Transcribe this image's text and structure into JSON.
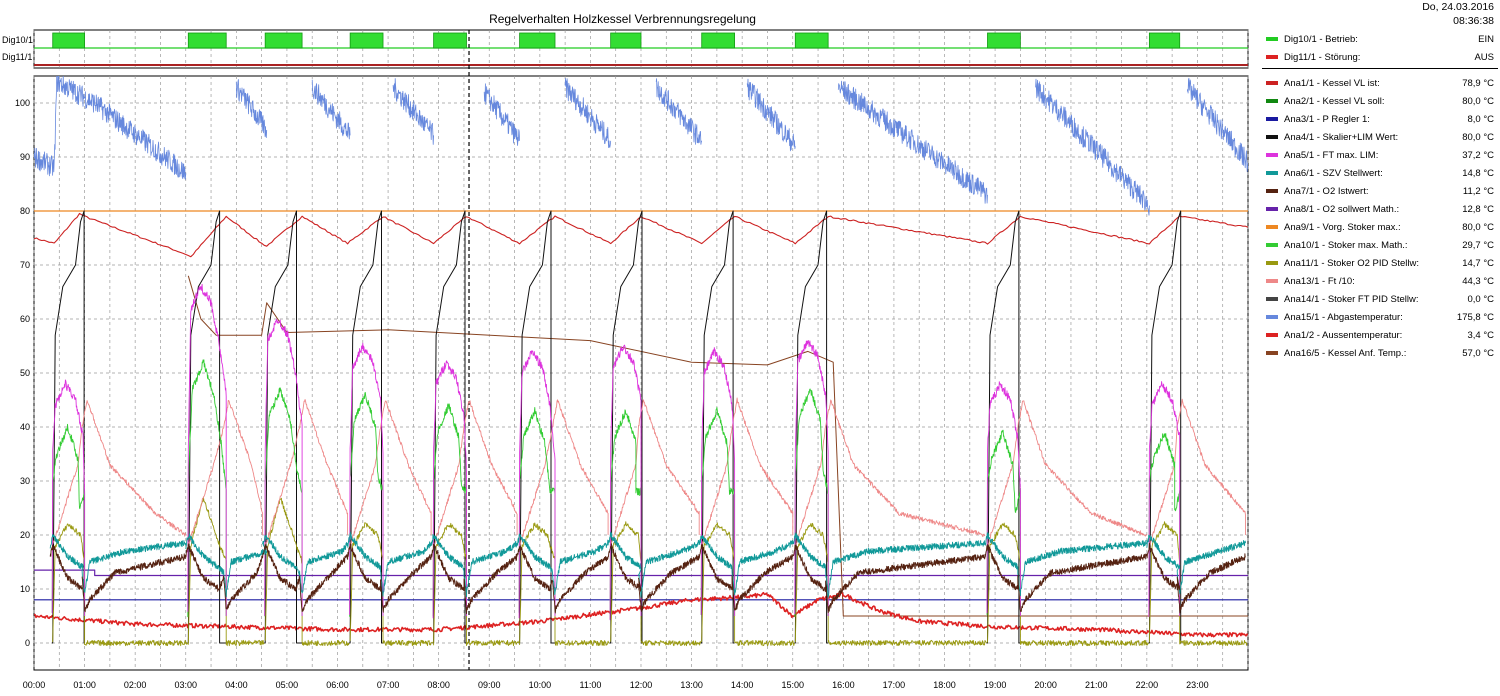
{
  "header": {
    "title": "Regelverhalten Holzkessel Verbrennungsregelung",
    "date": "Do, 24.03.2016",
    "time": "08:36:38"
  },
  "legend": {
    "digital": [
      {
        "label": "Dig10/1 - Betrieb:",
        "value": "EIN",
        "color": "#22cc22"
      },
      {
        "label": "Dig11/1 - Störung:",
        "value": "AUS",
        "color": "#dd2222"
      }
    ],
    "analog": [
      {
        "label": "Ana1/1 - Kessel VL ist:",
        "value": "78,9 °C",
        "color": "#cc2222"
      },
      {
        "label": "Ana2/1 - Kessel VL soll:",
        "value": "80,0 °C",
        "color": "#118811"
      },
      {
        "label": "Ana3/1 - P Regler 1:",
        "value": "8,0 °C",
        "color": "#1a1aa0"
      },
      {
        "label": "Ana4/1 - Skalier+LIM Wert:",
        "value": "80,0 °C",
        "color": "#111111"
      },
      {
        "label": "Ana5/1 - FT max. LIM:",
        "value": "37,2 °C",
        "color": "#dd33dd"
      },
      {
        "label": "Ana6/1 - SZV Stellwert:",
        "value": "14,8 °C",
        "color": "#119999"
      },
      {
        "label": "Ana7/1 - O2 Istwert:",
        "value": "11,2 °C",
        "color": "#552211"
      },
      {
        "label": "Ana8/1 - O2 sollwert Math.:",
        "value": "12,8 °C",
        "color": "#6622aa"
      },
      {
        "label": "Ana9/1 - Vorg. Stoker max.:",
        "value": "80,0 °C",
        "color": "#ee8822"
      },
      {
        "label": "Ana10/1 - Stoker max. Math.:",
        "value": "29,7 °C",
        "color": "#33cc33"
      },
      {
        "label": "Ana11/1 - Stoker O2 PID Stellw:",
        "value": "14,7 °C",
        "color": "#999911"
      },
      {
        "label": "Ana13/1 - Ft /10:",
        "value": "44,3 °C",
        "color": "#ee8888"
      },
      {
        "label": "Ana14/1 - Stoker FT PID Stellw:",
        "value": "0,0 °C",
        "color": "#444444"
      },
      {
        "label": "Ana15/1 - Abgastemperatur:",
        "value": "175,8 °C",
        "color": "#6688dd"
      },
      {
        "label": "Ana1/2 - Aussentemperatur:",
        "value": "3,4 °C",
        "color": "#dd2222"
      },
      {
        "label": "Ana16/5 - Kessel Anf. Temp.:",
        "value": "57,0 °C",
        "color": "#884422"
      }
    ]
  },
  "chart_data": {
    "type": "line",
    "title": "Regelverhalten Holzkessel Verbrennungsregelung",
    "digital_tracks": [
      {
        "name": "Dig10/1",
        "on_intervals_hours": [
          [
            0.37,
            1.0
          ],
          [
            3.05,
            3.8
          ],
          [
            4.57,
            5.3
          ],
          [
            6.25,
            6.9
          ],
          [
            7.9,
            8.55
          ],
          [
            9.6,
            10.3
          ],
          [
            11.4,
            12.0
          ],
          [
            13.2,
            13.85
          ],
          [
            15.05,
            15.7
          ],
          [
            18.85,
            19.5
          ],
          [
            22.05,
            22.65
          ]
        ]
      },
      {
        "name": "Dig11/1",
        "on_intervals_hours": []
      }
    ],
    "x_ticks": [
      "00:00",
      "01:00",
      "02:00",
      "03:00",
      "04:00",
      "05:00",
      "06:00",
      "07:00",
      "08:00",
      "09:00",
      "10:00",
      "11:00",
      "12:00",
      "13:00",
      "14:00",
      "15:00",
      "16:00",
      "17:00",
      "18:00",
      "19:00",
      "20:00",
      "21:00",
      "22:00",
      "23:00"
    ],
    "y_ticks": [
      0,
      10,
      20,
      30,
      40,
      50,
      60,
      70,
      80,
      90,
      100
    ],
    "xlim_hours": [
      0,
      24
    ],
    "ylim": [
      -5,
      105
    ],
    "grid": true,
    "cursor_hour": 8.6,
    "burn_cycles_start_hours": [
      0.37,
      3.05,
      4.57,
      6.25,
      7.9,
      9.6,
      11.4,
      13.2,
      15.05,
      18.85,
      22.05
    ],
    "burn_cycles_end_hours": [
      1.0,
      3.8,
      5.3,
      6.9,
      8.55,
      10.3,
      12.0,
      13.85,
      15.7,
      19.5,
      22.65
    ],
    "series": [
      {
        "name": "Ana1/1",
        "kind": "boiler",
        "points": [
          [
            0,
            75
          ],
          [
            0.4,
            74
          ],
          [
            0.9,
            79.5
          ],
          [
            1.0,
            79
          ],
          [
            3.0,
            72
          ],
          [
            3.1,
            71.5
          ],
          [
            3.8,
            79
          ],
          [
            4.5,
            74
          ],
          [
            4.6,
            73.5
          ],
          [
            5.3,
            79
          ],
          [
            6.2,
            74
          ],
          [
            6.9,
            79
          ],
          [
            7.9,
            74
          ],
          [
            8.55,
            79
          ],
          [
            9.6,
            74
          ],
          [
            10.3,
            79
          ],
          [
            11.4,
            74
          ],
          [
            12.0,
            79
          ],
          [
            13.2,
            74
          ],
          [
            13.85,
            79
          ],
          [
            15.05,
            74
          ],
          [
            15.7,
            79
          ],
          [
            18.85,
            74
          ],
          [
            19.5,
            79
          ],
          [
            22.05,
            74
          ],
          [
            22.65,
            79
          ],
          [
            24,
            77
          ]
        ]
      },
      {
        "name": "Ana9/1",
        "points": [
          [
            0,
            80
          ],
          [
            24,
            80
          ]
        ]
      },
      {
        "name": "Ana3/1",
        "points": [
          [
            0,
            8
          ],
          [
            24,
            8
          ]
        ]
      },
      {
        "name": "Ana8/1",
        "points": [
          [
            0,
            13.5
          ],
          [
            1.2,
            13.5
          ],
          [
            1.2,
            12.5
          ],
          [
            24,
            12.5
          ]
        ]
      },
      {
        "name": "Ana16/5",
        "points": [
          [
            3.05,
            68
          ],
          [
            3.3,
            60
          ],
          [
            3.6,
            57
          ],
          [
            4.5,
            57
          ],
          [
            4.6,
            63
          ],
          [
            5.0,
            57.5
          ],
          [
            7.0,
            58
          ],
          [
            11.0,
            56
          ],
          [
            13.0,
            52
          ],
          [
            14.5,
            51.5
          ],
          [
            15.3,
            54
          ],
          [
            15.8,
            52
          ],
          [
            16.0,
            5
          ],
          [
            24,
            5
          ]
        ]
      },
      {
        "name": "Ana1/2",
        "points": [
          [
            0,
            5
          ],
          [
            2,
            3.5
          ],
          [
            4,
            3
          ],
          [
            6,
            2.5
          ],
          [
            8,
            2.5
          ],
          [
            10,
            4
          ],
          [
            12,
            6.5
          ],
          [
            13,
            8
          ],
          [
            14,
            8.5
          ],
          [
            14.5,
            9
          ],
          [
            15,
            5
          ],
          [
            15.5,
            8
          ],
          [
            16,
            9
          ],
          [
            16.7,
            6
          ],
          [
            17.5,
            4
          ],
          [
            19,
            3
          ],
          [
            21,
            2.5
          ],
          [
            23,
            1.5
          ],
          [
            24,
            1.5
          ]
        ]
      }
    ],
    "abgas_segments": [
      [
        [
          0,
          90
        ],
        [
          0.4,
          88
        ],
        [
          0.45,
          104
        ],
        [
          1.2,
          100
        ],
        [
          3.0,
          87
        ]
      ],
      [
        [
          4.0,
          103
        ],
        [
          4.6,
          95
        ]
      ],
      [
        [
          5.5,
          103
        ],
        [
          6.25,
          94
        ]
      ],
      [
        [
          7.1,
          103
        ],
        [
          7.9,
          94
        ]
      ],
      [
        [
          8.9,
          102
        ],
        [
          9.6,
          93
        ]
      ],
      [
        [
          10.5,
          103
        ],
        [
          11.4,
          93
        ]
      ],
      [
        [
          12.3,
          103
        ],
        [
          13.2,
          93
        ]
      ],
      [
        [
          14.1,
          103
        ],
        [
          15.05,
          92
        ]
      ],
      [
        [
          15.9,
          103
        ],
        [
          18.85,
          83
        ]
      ],
      [
        [
          19.8,
          103
        ],
        [
          22.05,
          81
        ]
      ],
      [
        [
          22.8,
          103
        ],
        [
          24,
          89
        ]
      ]
    ]
  }
}
